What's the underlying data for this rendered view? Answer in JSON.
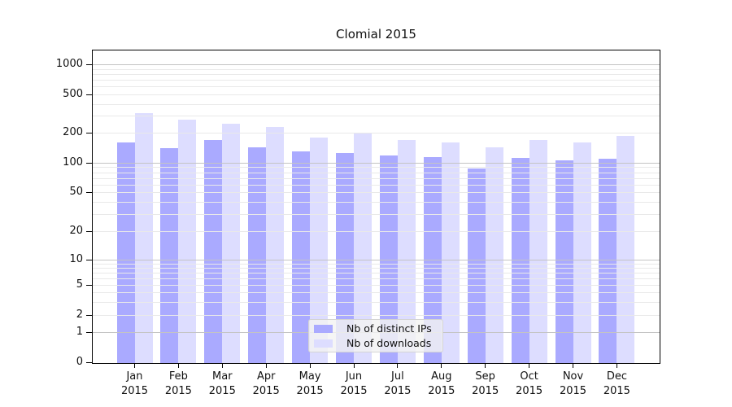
{
  "figure": {
    "background": "#ffffff",
    "text_color": "#111111"
  },
  "chart_data": {
    "type": "bar",
    "title": "Clomial 2015",
    "categories": [
      "Jan",
      "Feb",
      "Mar",
      "Apr",
      "May",
      "Jun",
      "Jul",
      "Aug",
      "Sep",
      "Oct",
      "Nov",
      "Dec"
    ],
    "year": "2015",
    "series": [
      {
        "name": "Nb of distinct IPs",
        "color": "#aaaaff",
        "values": [
          160,
          140,
          170,
          142,
          130,
          125,
          118,
          115,
          87,
          112,
          106,
          110
        ]
      },
      {
        "name": "Nb of downloads",
        "color": "#ddddff",
        "values": [
          320,
          275,
          250,
          230,
          180,
          197,
          171,
          161,
          143,
          170,
          160,
          186
        ]
      }
    ],
    "yscale": "symlog",
    "yticks": [
      0,
      1,
      2,
      5,
      10,
      20,
      50,
      100,
      200,
      500,
      1000
    ],
    "ylim": [
      0,
      1400
    ],
    "xlabel": "",
    "ylabel": "",
    "grid": true,
    "legend_position": "lower center inside plot",
    "grid_colors": {
      "decade": "#c4c4c4",
      "minor": "#e9e9e9"
    }
  }
}
